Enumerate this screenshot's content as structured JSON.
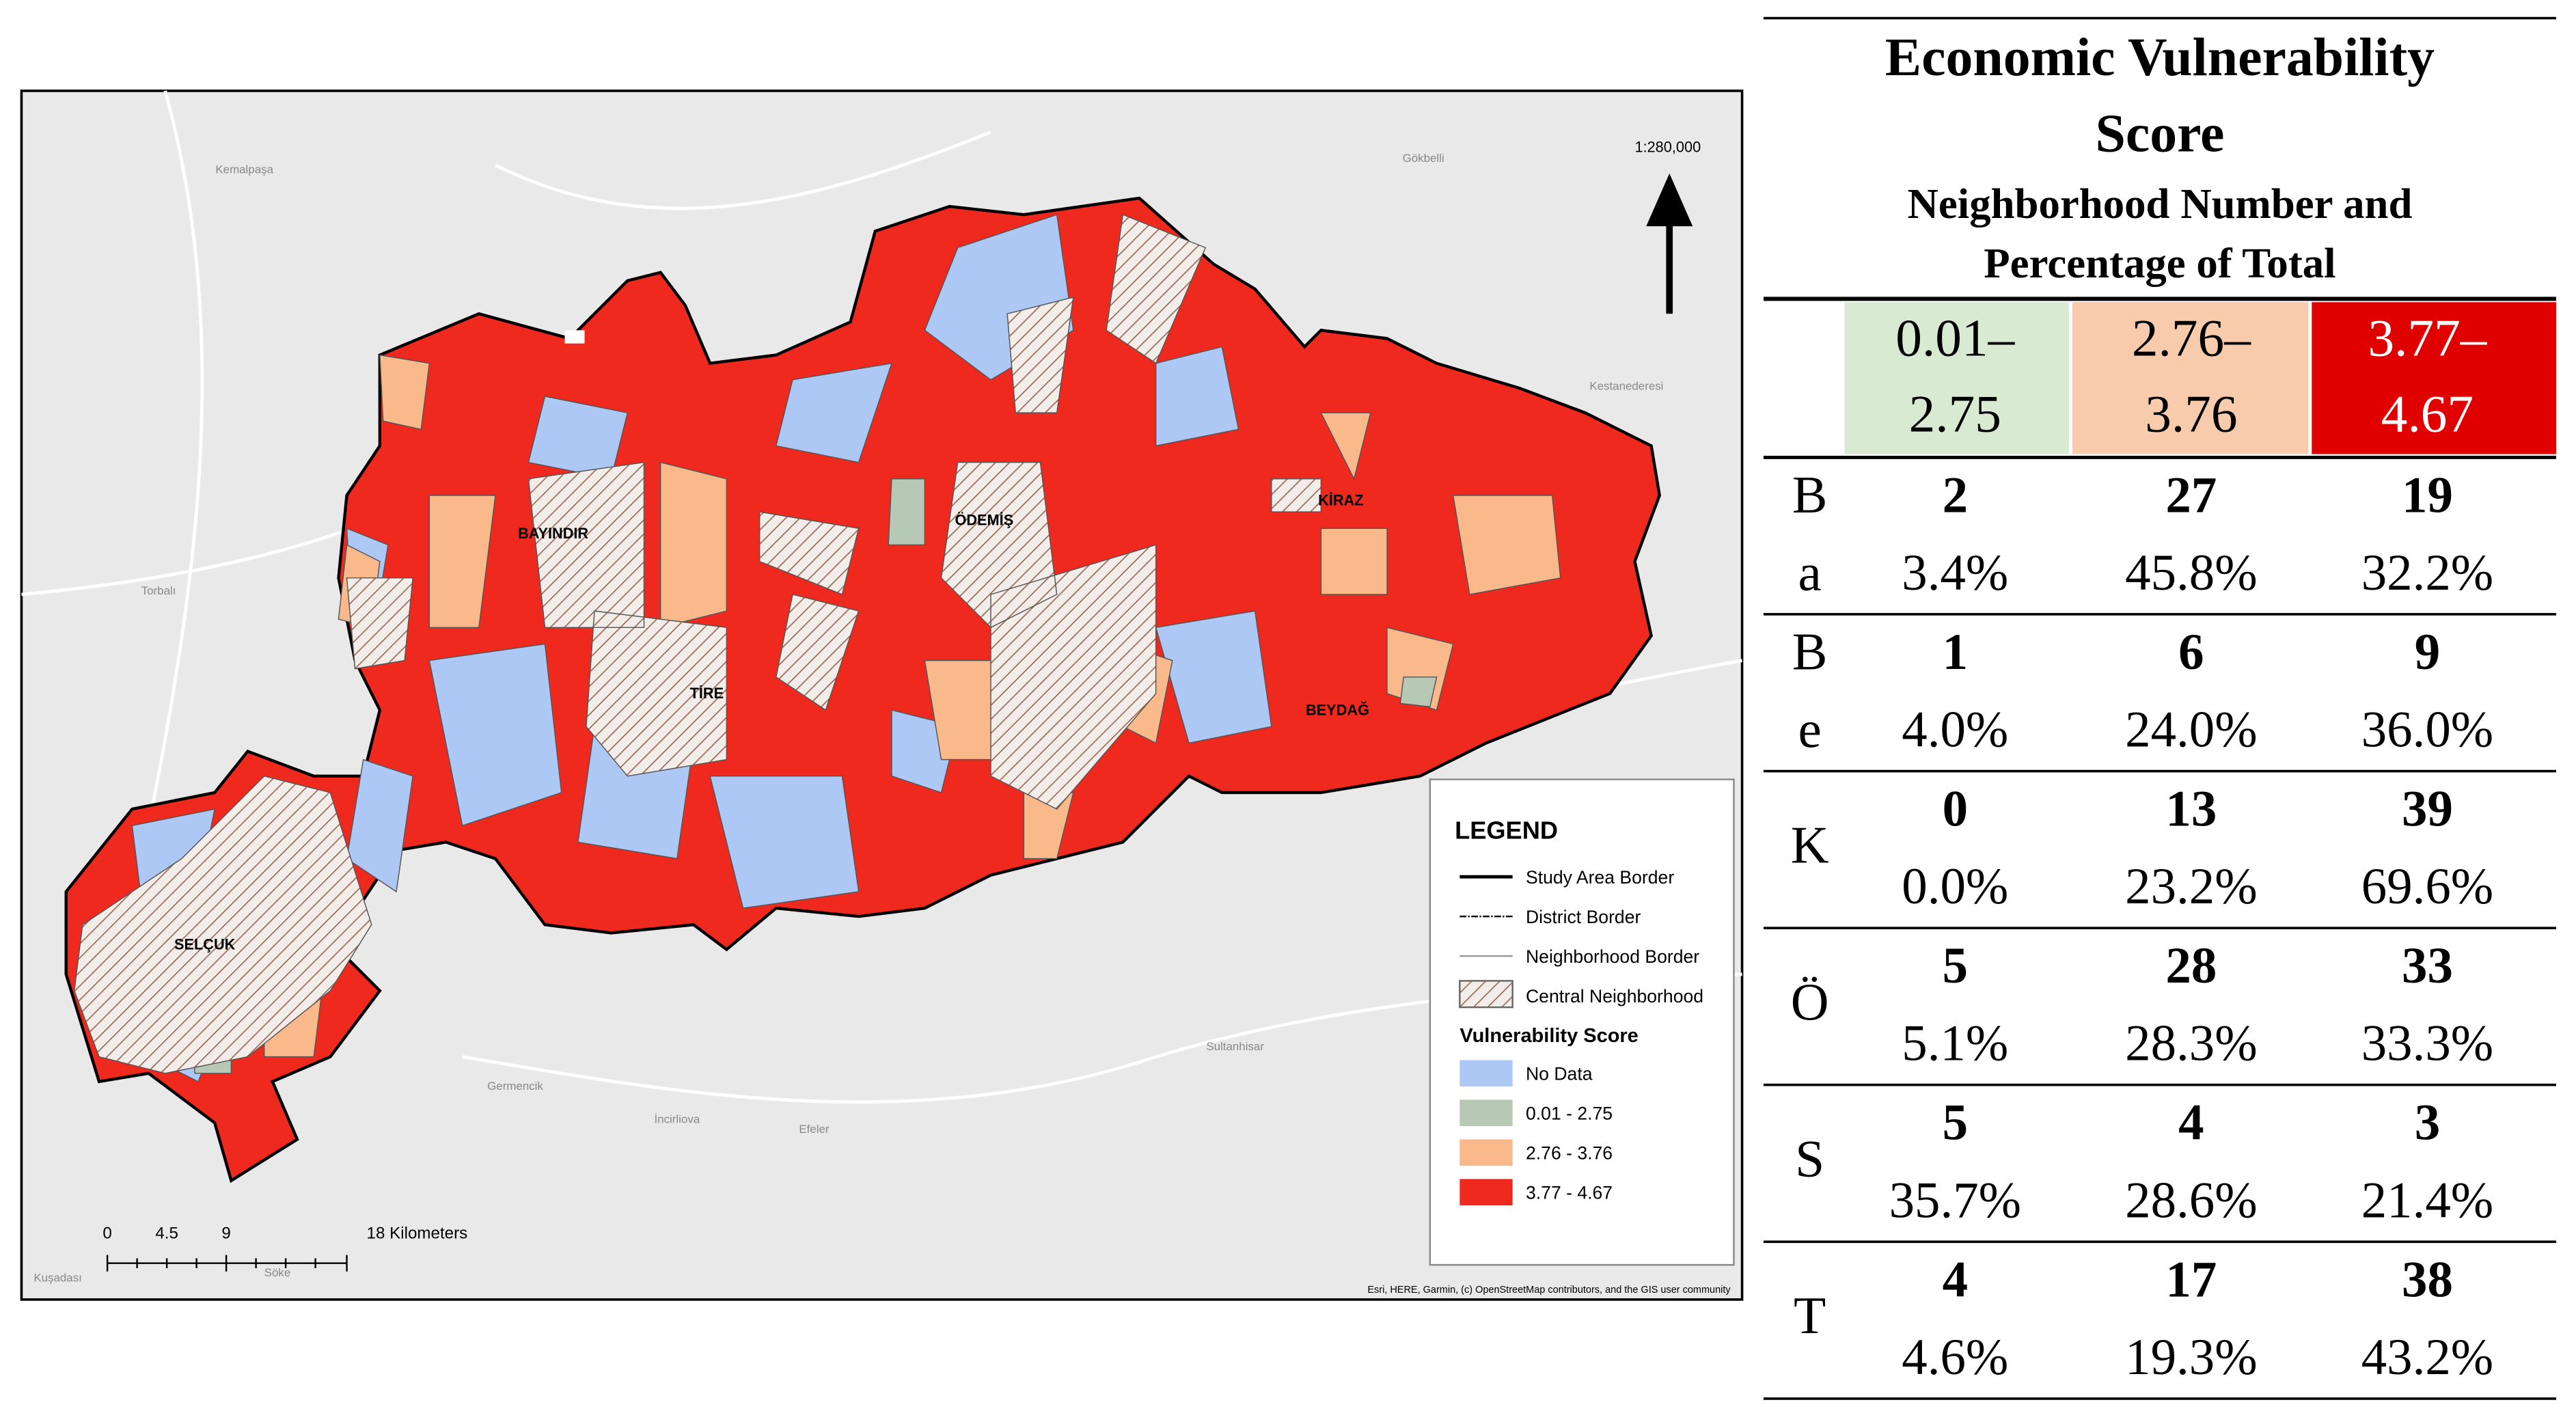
{
  "map": {
    "scale": "1:280,000",
    "district_labels": [
      "BAYINDIR",
      "ÖDEMİŞ",
      "KİRAZ",
      "TİRE",
      "BEYDAĞ",
      "SELÇUK"
    ],
    "place_names": [
      "Kemalpaşa",
      "Torbalı",
      "Germencik",
      "Kuşadası",
      "İncirliova",
      "Efeler",
      "Söke",
      "Sultanhisar",
      "Kestanederesi",
      "Gökbelli"
    ],
    "legend": {
      "title": "LEGEND",
      "items": [
        "Study Area Border",
        "District Border",
        "Neighborhood Border",
        "Central Neighborhood"
      ],
      "score_title": "Vulnerability Score",
      "score_items": [
        "No Data",
        "0.01 - 2.75",
        "2.76 - 3.76",
        "3.77 - 4.67"
      ]
    },
    "scale_bar": [
      "0",
      "4.5",
      "9",
      "18 Kilometers"
    ],
    "attribution": "Esri, HERE, Garmin, (c) OpenStreetMap contributors, and the GIS user community"
  },
  "table": {
    "title": [
      "Economic Vulnerability",
      "Score"
    ],
    "subtitle": [
      "Neighborhood Number and",
      "Percentage of Total"
    ],
    "columns": [
      [
        "0.01–",
        "2.75"
      ],
      [
        "2.76–",
        "3.76"
      ],
      [
        "3.77–",
        "4.67"
      ]
    ],
    "rows": [
      {
        "label": [
          "B",
          "a"
        ],
        "counts": [
          2,
          27,
          19
        ],
        "percents": [
          "3.4%",
          "45.8%",
          "32.2%"
        ]
      },
      {
        "label": [
          "B",
          "e"
        ],
        "counts": [
          1,
          6,
          9
        ],
        "percents": [
          "4.0%",
          "24.0%",
          "36.0%"
        ]
      },
      {
        "label": [
          "K"
        ],
        "counts": [
          0,
          13,
          39
        ],
        "percents": [
          "0.0%",
          "23.2%",
          "69.6%"
        ]
      },
      {
        "label": [
          "Ö"
        ],
        "counts": [
          5,
          28,
          33
        ],
        "percents": [
          "5.1%",
          "28.3%",
          "33.3%"
        ]
      },
      {
        "label": [
          "S"
        ],
        "counts": [
          5,
          4,
          3
        ],
        "percents": [
          "35.7%",
          "28.6%",
          "21.4%"
        ]
      },
      {
        "label": [
          "T"
        ],
        "counts": [
          4,
          17,
          38
        ],
        "percents": [
          "4.6%",
          "19.3%",
          "43.2%"
        ]
      }
    ]
  }
}
